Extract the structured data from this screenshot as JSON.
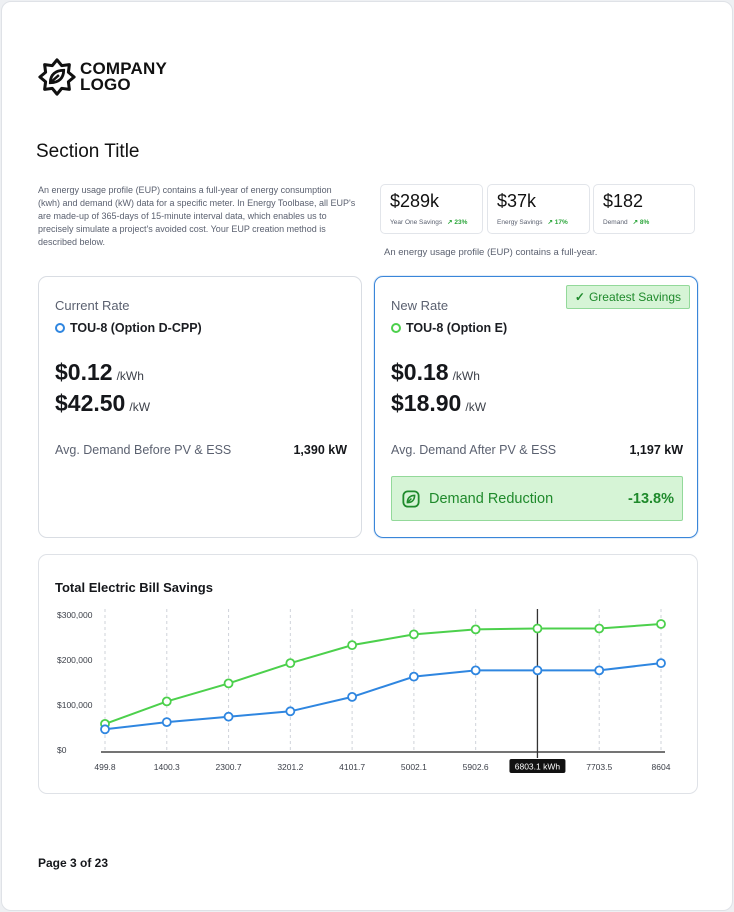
{
  "logo": {
    "line1": "COMPANY",
    "line2": "LOGO"
  },
  "section_title": "Section Title",
  "intro_text": "An energy usage profile (EUP) contains a full-year of energy consumption (kwh) and demand (kW) data for a specific meter. In Energy Toolbase, all EUP's are made-up of 365-days of 15-minute interval data, which enables us to precisely simulate a project's avoided cost. Your EUP creation method is described below.",
  "stats": [
    {
      "value": "$289k",
      "label": "Year One Savings",
      "change": "↗ 23%"
    },
    {
      "value": "$37k",
      "label": "Energy Savings",
      "change": "↗ 17%"
    },
    {
      "value": "$182",
      "label": "Demand",
      "change": "↗ 8%"
    }
  ],
  "stats_note": "An energy usage profile (EUP) contains a full-year.",
  "current": {
    "label": "Current Rate",
    "plan": "TOU-8 (Option D-CPP)",
    "energy_price": "$0.12",
    "energy_unit": "/kWh",
    "demand_price": "$42.50",
    "demand_unit": "/kW",
    "demand_label": "Avg. Demand Before PV & ESS",
    "demand_value": "1,390 kW"
  },
  "new": {
    "label": "New Rate",
    "badge": "Greatest Savings",
    "plan": "TOU-8 (Option E)",
    "energy_price": "$0.18",
    "energy_unit": "/kWh",
    "demand_price": "$18.90",
    "demand_unit": "/kW",
    "demand_label": "Avg. Demand After PV & ESS",
    "demand_value": "1,197 kW",
    "reduction_label": "Demand Reduction",
    "reduction_value": "-13.8%"
  },
  "colors": {
    "blue": "#2f86e0",
    "green": "#4cd04c",
    "accent_green": "#1f8a2c",
    "border_blue": "#3a86d9"
  },
  "chart_data": {
    "type": "line",
    "title": "Total Electric Bill Savings",
    "x": [
      "499.8",
      "1400.3",
      "2300.7",
      "3201.2",
      "4101.7",
      "5002.1",
      "5902.6",
      "6803.1",
      "7703.5",
      "8604"
    ],
    "ylim": [
      0,
      300000
    ],
    "y_ticks": [
      "$0",
      "$100,000",
      "$200,000",
      "$300,000"
    ],
    "y_tick_values": [
      0,
      100000,
      200000,
      300000
    ],
    "series": [
      {
        "color": "#4cd04c",
        "values": [
          58000,
          108000,
          148000,
          193000,
          233000,
          257000,
          268000,
          270000,
          270000,
          280000
        ]
      },
      {
        "color": "#2f86e0",
        "values": [
          46000,
          62000,
          74000,
          86000,
          118000,
          163000,
          177000,
          177000,
          177000,
          193000
        ]
      }
    ],
    "hover_index": 7,
    "hover_label": "6803.1 kWh"
  },
  "footer": {
    "page": "Page 3 of 23"
  }
}
